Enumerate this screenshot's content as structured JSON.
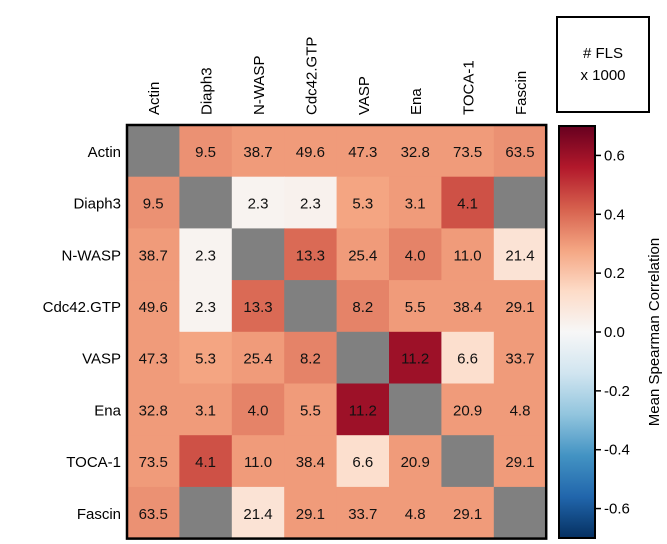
{
  "chart_data": {
    "type": "heatmap",
    "variables": [
      "Actin",
      "Diaph3",
      "N-WASP",
      "Cdc42.GTP",
      "VASP",
      "Ena",
      "TOCA-1",
      "Fascin"
    ],
    "cell_labels": [
      [
        "",
        "9.5",
        "38.7",
        "49.6",
        "47.3",
        "32.8",
        "73.5",
        "63.5"
      ],
      [
        "9.5",
        "",
        "2.3",
        "2.3",
        "5.3",
        "3.1",
        "4.1",
        ""
      ],
      [
        "38.7",
        "2.3",
        "",
        "13.3",
        "25.4",
        "4.0",
        "11.0",
        "21.4"
      ],
      [
        "49.6",
        "2.3",
        "13.3",
        "",
        "8.2",
        "5.5",
        "38.4",
        "29.1"
      ],
      [
        "47.3",
        "5.3",
        "25.4",
        "8.2",
        "",
        "11.2",
        "6.6",
        "33.7"
      ],
      [
        "32.8",
        "3.1",
        "4.0",
        "5.5",
        "11.2",
        "",
        "20.9",
        "4.8"
      ],
      [
        "73.5",
        "4.1",
        "11.0",
        "38.4",
        "6.6",
        "20.9",
        "",
        "29.1"
      ],
      [
        "63.5",
        "",
        "21.4",
        "29.1",
        "33.7",
        "4.8",
        "29.1",
        ""
      ]
    ],
    "correlation_values": [
      [
        null,
        0.32,
        0.3,
        0.3,
        0.3,
        0.3,
        0.3,
        0.32
      ],
      [
        0.32,
        null,
        0.02,
        0.03,
        0.28,
        0.3,
        0.45,
        null
      ],
      [
        0.3,
        0.02,
        null,
        0.4,
        0.3,
        0.35,
        0.3,
        0.1
      ],
      [
        0.3,
        0.02,
        0.4,
        null,
        0.35,
        0.3,
        0.3,
        0.3
      ],
      [
        0.3,
        0.28,
        0.3,
        0.35,
        null,
        0.6,
        0.12,
        0.3
      ],
      [
        0.3,
        0.3,
        0.35,
        0.3,
        0.6,
        null,
        0.3,
        0.3
      ],
      [
        0.3,
        0.45,
        0.3,
        0.3,
        0.12,
        0.3,
        null,
        0.3
      ],
      [
        0.32,
        null,
        0.1,
        0.3,
        0.3,
        0.3,
        0.3,
        null
      ]
    ],
    "missing_color": "#808080",
    "colorscale": [
      "#053061",
      "#2166ac",
      "#4393c3",
      "#92c5de",
      "#d1e5f0",
      "#f7f7f7",
      "#fddbc7",
      "#f4a582",
      "#d6604d",
      "#b2182b",
      "#67001f"
    ],
    "colorbar": {
      "range": [
        -0.7,
        0.7
      ],
      "ticks": [
        0.6,
        0.4,
        0.2,
        0.0,
        -0.2,
        -0.4,
        -0.6
      ],
      "tick_labels": [
        "0.6",
        "0.4",
        "0.2",
        "0.0",
        "-0.2",
        "-0.4",
        "-0.6"
      ],
      "label": "Mean Spearman Correlation"
    },
    "legend_box": {
      "line1": "# FLS",
      "line2": "x 1000"
    }
  }
}
